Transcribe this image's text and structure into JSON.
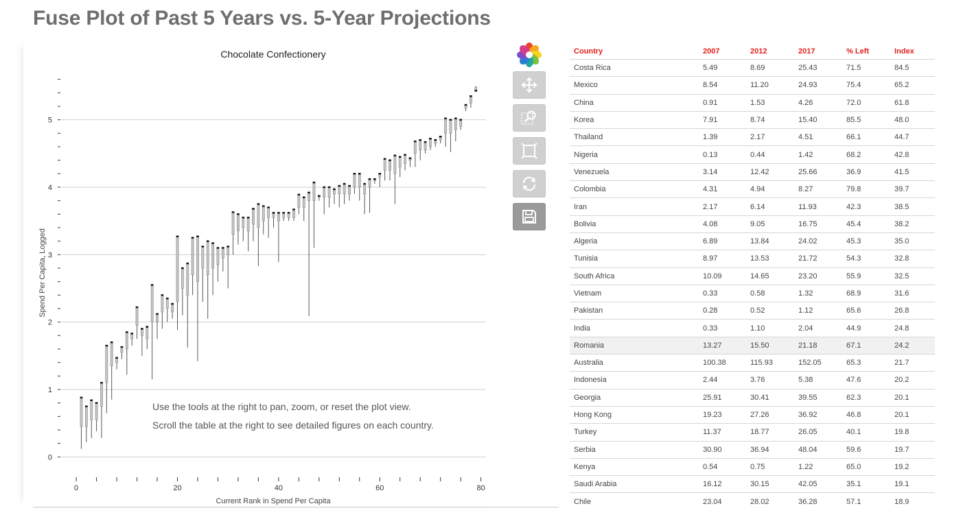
{
  "page": {
    "title": "Fuse Plot of Past 5 Years vs. 5-Year Projections"
  },
  "chart_data": {
    "type": "fuse",
    "title": "Chocolate Confectionery",
    "xlabel": "Current Rank in Spend Per Capita",
    "ylabel": "Spend Per Capita, Logged",
    "xlim": [
      -3,
      81
    ],
    "ylim": [
      -0.2,
      5.8
    ],
    "x_ticks": [
      0,
      20,
      40,
      60,
      80
    ],
    "y_ticks": [
      0,
      1,
      2,
      3,
      4,
      5
    ],
    "grid": "horizontal",
    "annotations": [
      "Use the tools at the right to pan, zoom, or reset the plot view.",
      "Scroll the table at the right to see detailed figures on each country."
    ],
    "fuses": [
      {
        "x": 1,
        "start": 0.12,
        "mid": 0.45,
        "end": 0.88
      },
      {
        "x": 2,
        "start": 0.22,
        "mid": 0.45,
        "end": 0.75
      },
      {
        "x": 3,
        "start": 0.28,
        "mid": 0.55,
        "end": 0.84
      },
      {
        "x": 4,
        "start": 0.38,
        "mid": 0.55,
        "end": 0.8
      },
      {
        "x": 5,
        "start": 0.28,
        "mid": 0.75,
        "end": 1.1
      },
      {
        "x": 6,
        "start": 0.65,
        "mid": 1.1,
        "end": 1.65
      },
      {
        "x": 7,
        "start": 0.85,
        "mid": 1.35,
        "end": 1.7
      },
      {
        "x": 8,
        "start": 1.3,
        "mid": 1.4,
        "end": 1.47
      },
      {
        "x": 9,
        "start": 1.45,
        "mid": 1.55,
        "end": 1.63
      },
      {
        "x": 10,
        "start": 1.22,
        "mid": 1.6,
        "end": 1.85
      },
      {
        "x": 11,
        "start": 1.65,
        "mid": 1.75,
        "end": 1.83
      },
      {
        "x": 12,
        "start": 1.75,
        "mid": 1.95,
        "end": 2.22
      },
      {
        "x": 13,
        "start": 1.5,
        "mid": 1.8,
        "end": 1.9
      },
      {
        "x": 14,
        "start": 1.6,
        "mid": 1.75,
        "end": 1.93
      },
      {
        "x": 15,
        "start": 1.15,
        "mid": 2.0,
        "end": 2.55
      },
      {
        "x": 16,
        "start": 1.75,
        "mid": 2.0,
        "end": 2.12
      },
      {
        "x": 17,
        "start": 1.9,
        "mid": 2.15,
        "end": 2.4
      },
      {
        "x": 18,
        "start": 2.0,
        "mid": 2.2,
        "end": 2.35
      },
      {
        "x": 19,
        "start": 2.05,
        "mid": 2.15,
        "end": 2.27
      },
      {
        "x": 20,
        "start": 1.88,
        "mid": 2.3,
        "end": 3.27
      },
      {
        "x": 21,
        "start": 2.1,
        "mid": 2.5,
        "end": 2.8
      },
      {
        "x": 22,
        "start": 1.62,
        "mid": 2.4,
        "end": 2.87
      },
      {
        "x": 23,
        "start": 2.4,
        "mid": 2.7,
        "end": 3.25
      },
      {
        "x": 24,
        "start": 1.42,
        "mid": 2.6,
        "end": 3.27
      },
      {
        "x": 25,
        "start": 2.3,
        "mid": 2.8,
        "end": 3.12
      },
      {
        "x": 26,
        "start": 2.05,
        "mid": 2.7,
        "end": 3.2
      },
      {
        "x": 27,
        "start": 2.4,
        "mid": 2.8,
        "end": 3.17
      },
      {
        "x": 28,
        "start": 2.6,
        "mid": 2.85,
        "end": 3.1
      },
      {
        "x": 29,
        "start": 2.75,
        "mid": 2.95,
        "end": 3.1
      },
      {
        "x": 30,
        "start": 2.5,
        "mid": 3.0,
        "end": 3.12
      },
      {
        "x": 31,
        "start": 3.0,
        "mid": 3.3,
        "end": 3.63
      },
      {
        "x": 32,
        "start": 3.15,
        "mid": 3.35,
        "end": 3.6
      },
      {
        "x": 33,
        "start": 3.2,
        "mid": 3.4,
        "end": 3.55
      },
      {
        "x": 34,
        "start": 3.05,
        "mid": 3.35,
        "end": 3.55
      },
      {
        "x": 35,
        "start": 3.2,
        "mid": 3.45,
        "end": 3.68
      },
      {
        "x": 36,
        "start": 2.83,
        "mid": 3.4,
        "end": 3.75
      },
      {
        "x": 37,
        "start": 3.3,
        "mid": 3.5,
        "end": 3.72
      },
      {
        "x": 38,
        "start": 3.25,
        "mid": 3.55,
        "end": 3.7
      },
      {
        "x": 39,
        "start": 3.4,
        "mid": 3.55,
        "end": 3.62
      },
      {
        "x": 40,
        "start": 2.89,
        "mid": 3.5,
        "end": 3.62
      },
      {
        "x": 41,
        "start": 3.5,
        "mid": 3.55,
        "end": 3.62
      },
      {
        "x": 42,
        "start": 3.5,
        "mid": 3.55,
        "end": 3.62
      },
      {
        "x": 43,
        "start": 3.5,
        "mid": 3.55,
        "end": 3.67
      },
      {
        "x": 44,
        "start": 3.6,
        "mid": 3.7,
        "end": 3.89
      },
      {
        "x": 45,
        "start": 3.5,
        "mid": 3.7,
        "end": 3.85
      },
      {
        "x": 46,
        "start": 2.09,
        "mid": 3.8,
        "end": 3.92
      },
      {
        "x": 47,
        "start": 3.1,
        "mid": 3.8,
        "end": 4.07
      },
      {
        "x": 48,
        "start": 3.8,
        "mid": 3.85,
        "end": 3.87
      },
      {
        "x": 49,
        "start": 3.6,
        "mid": 3.85,
        "end": 4.0
      },
      {
        "x": 50,
        "start": 3.7,
        "mid": 3.85,
        "end": 4.0
      },
      {
        "x": 51,
        "start": 3.75,
        "mid": 3.9,
        "end": 3.97
      },
      {
        "x": 52,
        "start": 3.7,
        "mid": 3.9,
        "end": 4.02
      },
      {
        "x": 53,
        "start": 3.75,
        "mid": 3.9,
        "end": 4.05
      },
      {
        "x": 54,
        "start": 3.8,
        "mid": 3.9,
        "end": 4.02
      },
      {
        "x": 55,
        "start": 3.9,
        "mid": 4.0,
        "end": 4.2
      },
      {
        "x": 56,
        "start": 3.8,
        "mid": 4.0,
        "end": 4.2
      },
      {
        "x": 57,
        "start": 3.6,
        "mid": 3.9,
        "end": 4.05
      },
      {
        "x": 58,
        "start": 3.62,
        "mid": 4.0,
        "end": 4.12
      },
      {
        "x": 59,
        "start": 4.05,
        "mid": 4.1,
        "end": 4.12
      },
      {
        "x": 60,
        "start": 4.0,
        "mid": 4.15,
        "end": 4.2
      },
      {
        "x": 61,
        "start": 4.1,
        "mid": 4.25,
        "end": 4.42
      },
      {
        "x": 62,
        "start": 4.1,
        "mid": 4.25,
        "end": 4.4
      },
      {
        "x": 63,
        "start": 3.75,
        "mid": 4.2,
        "end": 4.47
      },
      {
        "x": 64,
        "start": 4.15,
        "mid": 4.3,
        "end": 4.45
      },
      {
        "x": 65,
        "start": 4.25,
        "mid": 4.35,
        "end": 4.48
      },
      {
        "x": 66,
        "start": 4.3,
        "mid": 4.4,
        "end": 4.43
      },
      {
        "x": 67,
        "start": 4.3,
        "mid": 4.5,
        "end": 4.68
      },
      {
        "x": 68,
        "start": 4.4,
        "mid": 4.55,
        "end": 4.7
      },
      {
        "x": 69,
        "start": 4.5,
        "mid": 4.55,
        "end": 4.67
      },
      {
        "x": 70,
        "start": 4.55,
        "mid": 4.6,
        "end": 4.72
      },
      {
        "x": 71,
        "start": 4.6,
        "mid": 4.65,
        "end": 4.7
      },
      {
        "x": 72,
        "start": 4.65,
        "mid": 4.7,
        "end": 4.75
      },
      {
        "x": 73,
        "start": 4.6,
        "mid": 4.8,
        "end": 5.02
      },
      {
        "x": 74,
        "start": 4.52,
        "mid": 4.8,
        "end": 5.0
      },
      {
        "x": 75,
        "start": 4.68,
        "mid": 4.85,
        "end": 5.02
      },
      {
        "x": 76,
        "start": 4.85,
        "mid": 4.9,
        "end": 5.0
      },
      {
        "x": 77,
        "start": 5.13,
        "mid": 5.17,
        "end": 5.22
      },
      {
        "x": 78,
        "start": 5.18,
        "mid": 5.25,
        "end": 5.35
      },
      {
        "x": 79,
        "start": 5.5,
        "mid": 5.48,
        "end": 5.43
      }
    ]
  },
  "toolbar": {
    "tools": [
      {
        "icon": "pan-icon",
        "label": "Pan"
      },
      {
        "icon": "box-zoom-icon",
        "label": "Box Zoom"
      },
      {
        "icon": "resize-icon",
        "label": "Resize"
      },
      {
        "icon": "reset-icon",
        "label": "Reset"
      },
      {
        "icon": "save-icon",
        "label": "Save"
      }
    ],
    "colors": {
      "button": "#d0d0d0",
      "active": "#9a9a9a",
      "header_text": "#e0201b"
    }
  },
  "table": {
    "columns": [
      "Country",
      "2007",
      "2012",
      "2017",
      "% Left",
      "Index"
    ],
    "highlight_row": 16,
    "rows": [
      [
        "Costa Rica",
        "5.49",
        "8.69",
        "25.43",
        "71.5",
        "84.5"
      ],
      [
        "Mexico",
        "8.54",
        "11.20",
        "24.93",
        "75.4",
        "65.2"
      ],
      [
        "China",
        "0.91",
        "1.53",
        "4.26",
        "72.0",
        "61.8"
      ],
      [
        "Korea",
        "7.91",
        "8.74",
        "15.40",
        "85.5",
        "48.0"
      ],
      [
        "Thailand",
        "1.39",
        "2.17",
        "4.51",
        "66.1",
        "44.7"
      ],
      [
        "Nigeria",
        "0.13",
        "0.44",
        "1.42",
        "68.2",
        "42.8"
      ],
      [
        "Venezuela",
        "3.14",
        "12.42",
        "25.66",
        "36.9",
        "41.5"
      ],
      [
        "Colombia",
        "4.31",
        "4.94",
        "8.27",
        "79.8",
        "39.7"
      ],
      [
        "Iran",
        "2.17",
        "6.14",
        "11.93",
        "42.3",
        "38.5"
      ],
      [
        "Bolivia",
        "4.08",
        "9.05",
        "16.75",
        "45.4",
        "38.2"
      ],
      [
        "Algeria",
        "6.89",
        "13.84",
        "24.02",
        "45.3",
        "35.0"
      ],
      [
        "Tunisia",
        "8.97",
        "13.53",
        "21.72",
        "54.3",
        "32.8"
      ],
      [
        "South Africa",
        "10.09",
        "14.65",
        "23.20",
        "55.9",
        "32.5"
      ],
      [
        "Vietnam",
        "0.33",
        "0.58",
        "1.32",
        "68.9",
        "31.6"
      ],
      [
        "Pakistan",
        "0.28",
        "0.52",
        "1.12",
        "65.6",
        "26.8"
      ],
      [
        "India",
        "0.33",
        "1.10",
        "2.04",
        "44.9",
        "24.8"
      ],
      [
        "Romania",
        "13.27",
        "15.50",
        "21.18",
        "67.1",
        "24.2"
      ],
      [
        "Australia",
        "100.38",
        "115.93",
        "152.05",
        "65.3",
        "21.7"
      ],
      [
        "Indonesia",
        "2.44",
        "3.76",
        "5.38",
        "47.6",
        "20.2"
      ],
      [
        "Georgia",
        "25.91",
        "30.41",
        "39.55",
        "62.3",
        "20.1"
      ],
      [
        "Hong Kong",
        "19.23",
        "27.26",
        "36.92",
        "46.8",
        "20.1"
      ],
      [
        "Turkey",
        "11.37",
        "18.77",
        "26.05",
        "40.1",
        "19.8"
      ],
      [
        "Serbia",
        "30.90",
        "36.94",
        "48.04",
        "59.6",
        "19.7"
      ],
      [
        "Kenya",
        "0.54",
        "0.75",
        "1.22",
        "65.0",
        "19.2"
      ],
      [
        "Saudi Arabia",
        "16.12",
        "30.15",
        "42.05",
        "35.1",
        "19.1"
      ],
      [
        "Chile",
        "23.04",
        "28.02",
        "36.28",
        "57.1",
        "18.9"
      ]
    ]
  }
}
